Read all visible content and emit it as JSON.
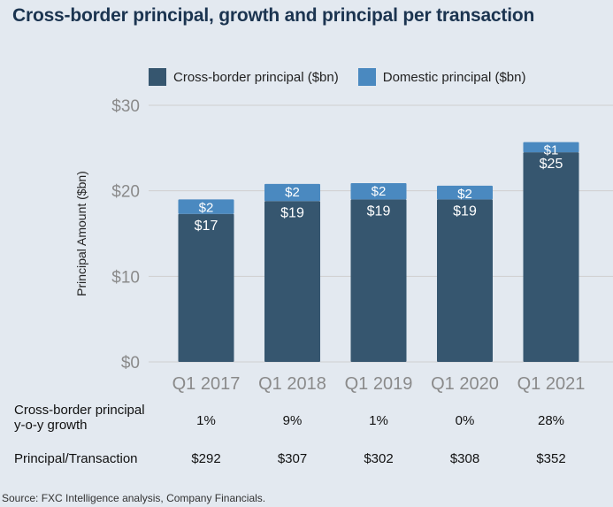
{
  "title": "Cross-border principal, growth and principal per transaction",
  "source": "Source: FXC Intelligence analysis, Company Financials.",
  "colors": {
    "cross_border": "#36566f",
    "domestic": "#4a89c0",
    "title": "#1b3450"
  },
  "chart_data": {
    "type": "bar",
    "stacked": true,
    "categories": [
      "Q1 2017",
      "Q1 2018",
      "Q1 2019",
      "Q1 2020",
      "Q1 2021"
    ],
    "series": [
      {
        "name": "Cross-border principal ($bn)",
        "values": [
          17.3,
          18.8,
          19.0,
          19.0,
          24.5
        ],
        "labels": [
          "$17",
          "$19",
          "$19",
          "$19",
          "$25"
        ]
      },
      {
        "name": "Domestic principal ($bn)",
        "values": [
          1.7,
          2.0,
          1.9,
          1.6,
          1.2
        ],
        "labels": [
          "$2",
          "$2",
          "$2",
          "$2",
          "$1"
        ]
      }
    ],
    "ylabel": "Principal Amount ($bn)",
    "ylim": [
      0,
      30
    ],
    "yticks": [
      "$0",
      "$10",
      "$20",
      "$30"
    ],
    "ytick_values": [
      0,
      10,
      20,
      30
    ],
    "grid": true,
    "legend": "top"
  },
  "table": {
    "rows": [
      {
        "label_line1": "Cross-border principal",
        "label_line2": "y-o-y growth",
        "values": [
          "1%",
          "9%",
          "1%",
          "0%",
          "28%"
        ]
      },
      {
        "label_line1": "Principal/Transaction",
        "values": [
          "$292",
          "$307",
          "$302",
          "$308",
          "$352"
        ]
      }
    ]
  }
}
